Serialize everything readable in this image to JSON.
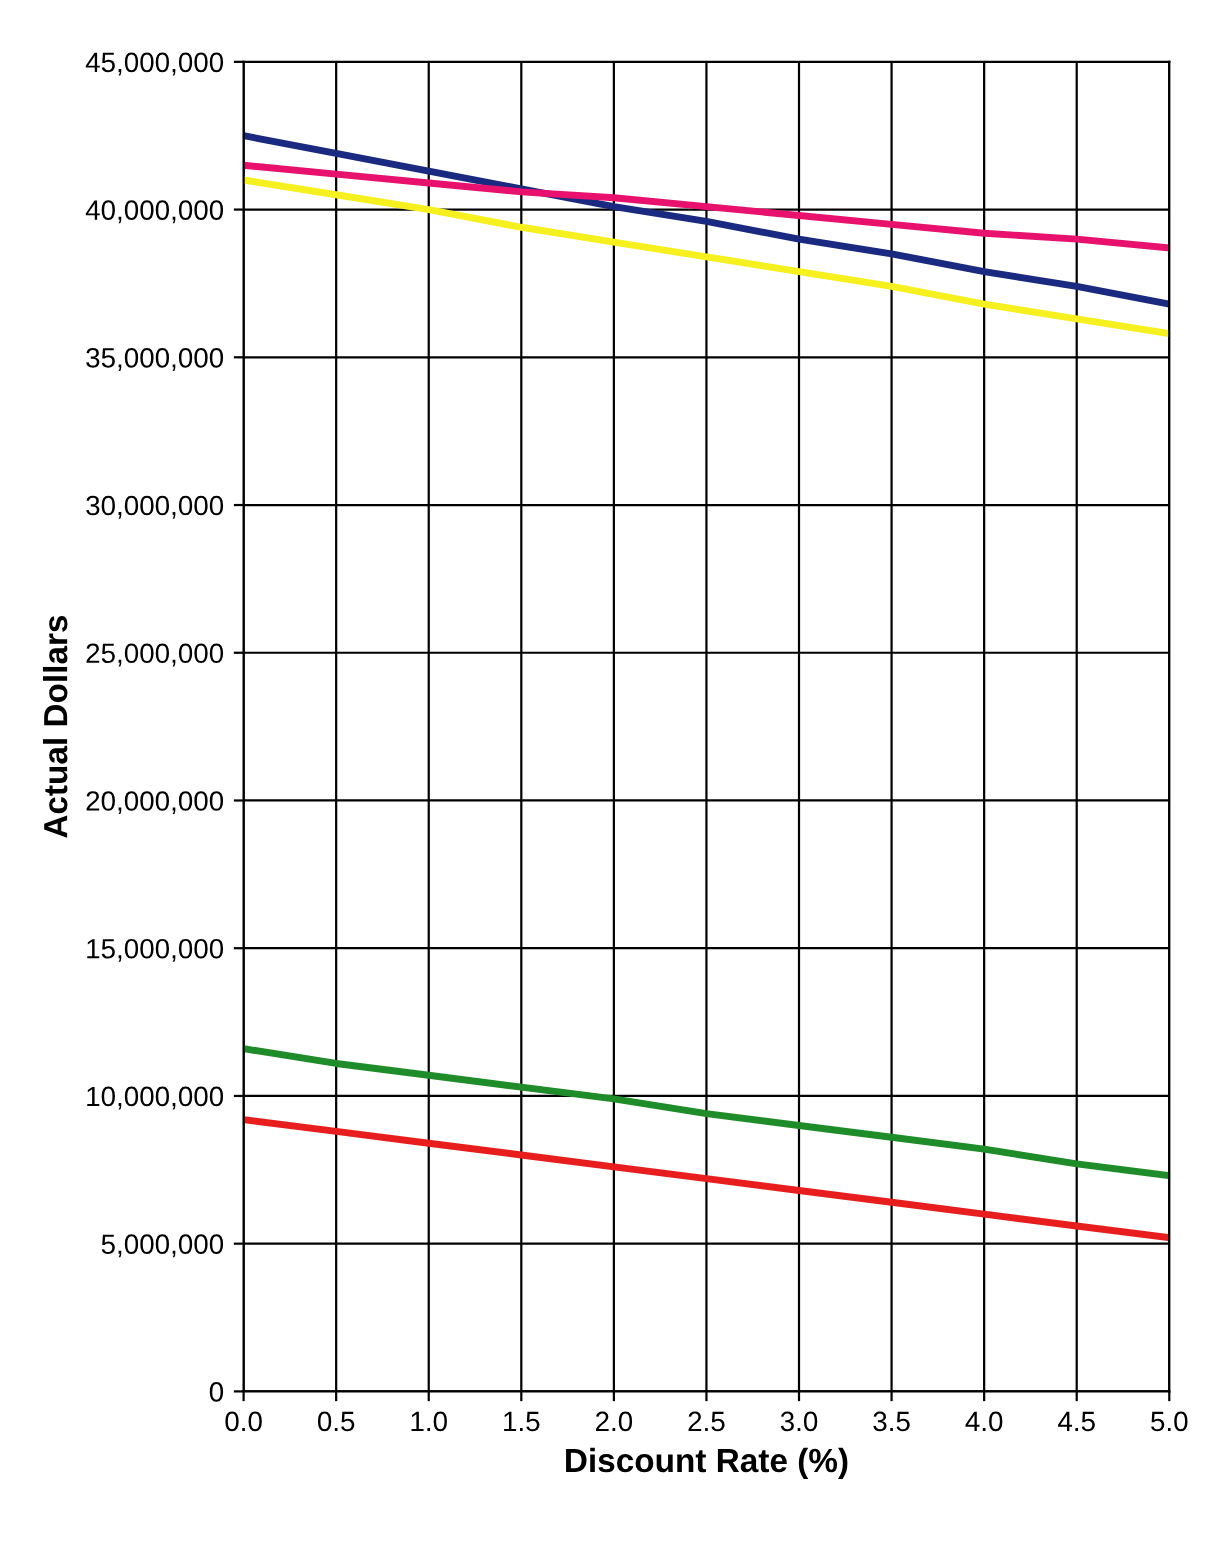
{
  "chart_data": {
    "type": "line",
    "xlabel": "Discount Rate (%)",
    "ylabel": "Actual Dollars",
    "x": [
      0,
      0.5,
      1,
      1.5,
      2,
      2.5,
      3,
      3.5,
      4,
      4.5,
      5
    ],
    "series": [
      {
        "color": "#1a2a80",
        "values": [
          42500000,
          41900000,
          41300000,
          40700000,
          40100000,
          39600000,
          39000000,
          38500000,
          37900000,
          37400000,
          36800000
        ]
      },
      {
        "color": "#e8126e",
        "values": [
          41500000,
          41200000,
          40900000,
          40600000,
          40400000,
          40100000,
          39800000,
          39500000,
          39200000,
          39000000,
          38700000
        ]
      },
      {
        "color": "#f5f01e",
        "values": [
          41000000,
          40500000,
          40000000,
          39400000,
          38900000,
          38400000,
          37900000,
          37400000,
          36800000,
          36300000,
          35800000
        ]
      },
      {
        "color": "#1e8c28",
        "values": [
          11600000,
          11100000,
          10700000,
          10300000,
          9900000,
          9400000,
          9000000,
          8600000,
          8200000,
          7700000,
          7300000
        ]
      },
      {
        "color": "#e81e1e",
        "values": [
          9200000,
          8800000,
          8400000,
          8000000,
          7600000,
          7200000,
          6800000,
          6400000,
          6000000,
          5600000,
          5200000
        ]
      }
    ],
    "xlim": [
      0,
      5
    ],
    "xticks": [
      {
        "value": 0,
        "label": "0.0"
      },
      {
        "value": 0.5,
        "label": "0.5"
      },
      {
        "value": 1,
        "label": "1.0"
      },
      {
        "value": 1.5,
        "label": "1.5"
      },
      {
        "value": 2,
        "label": "2.0"
      },
      {
        "value": 2.5,
        "label": "2.5"
      },
      {
        "value": 3,
        "label": "3.0"
      },
      {
        "value": 3.5,
        "label": "3.5"
      },
      {
        "value": 4,
        "label": "4.0"
      },
      {
        "value": 4.5,
        "label": "4.5"
      },
      {
        "value": 5,
        "label": "5.0"
      }
    ],
    "ylim": [
      0,
      45000000
    ],
    "yticks": [
      0,
      {
        "value": 5000000,
        "label": "5,000,000"
      },
      {
        "value": 10000000,
        "label": "10,000,000"
      },
      {
        "value": 15000000,
        "label": "15,000,000"
      },
      {
        "value": 20000000,
        "label": "20,000,000"
      },
      {
        "value": 25000000,
        "label": "25,000,000"
      },
      {
        "value": 30000000,
        "label": "30,000,000"
      },
      {
        "value": 35000000,
        "label": "35,000,000"
      },
      {
        "value": 40000000,
        "label": "40,000,000"
      },
      {
        "value": 45000000,
        "label": "45,000,000"
      }
    ],
    "grid": true,
    "marker": "none",
    "line_style": "solid"
  }
}
